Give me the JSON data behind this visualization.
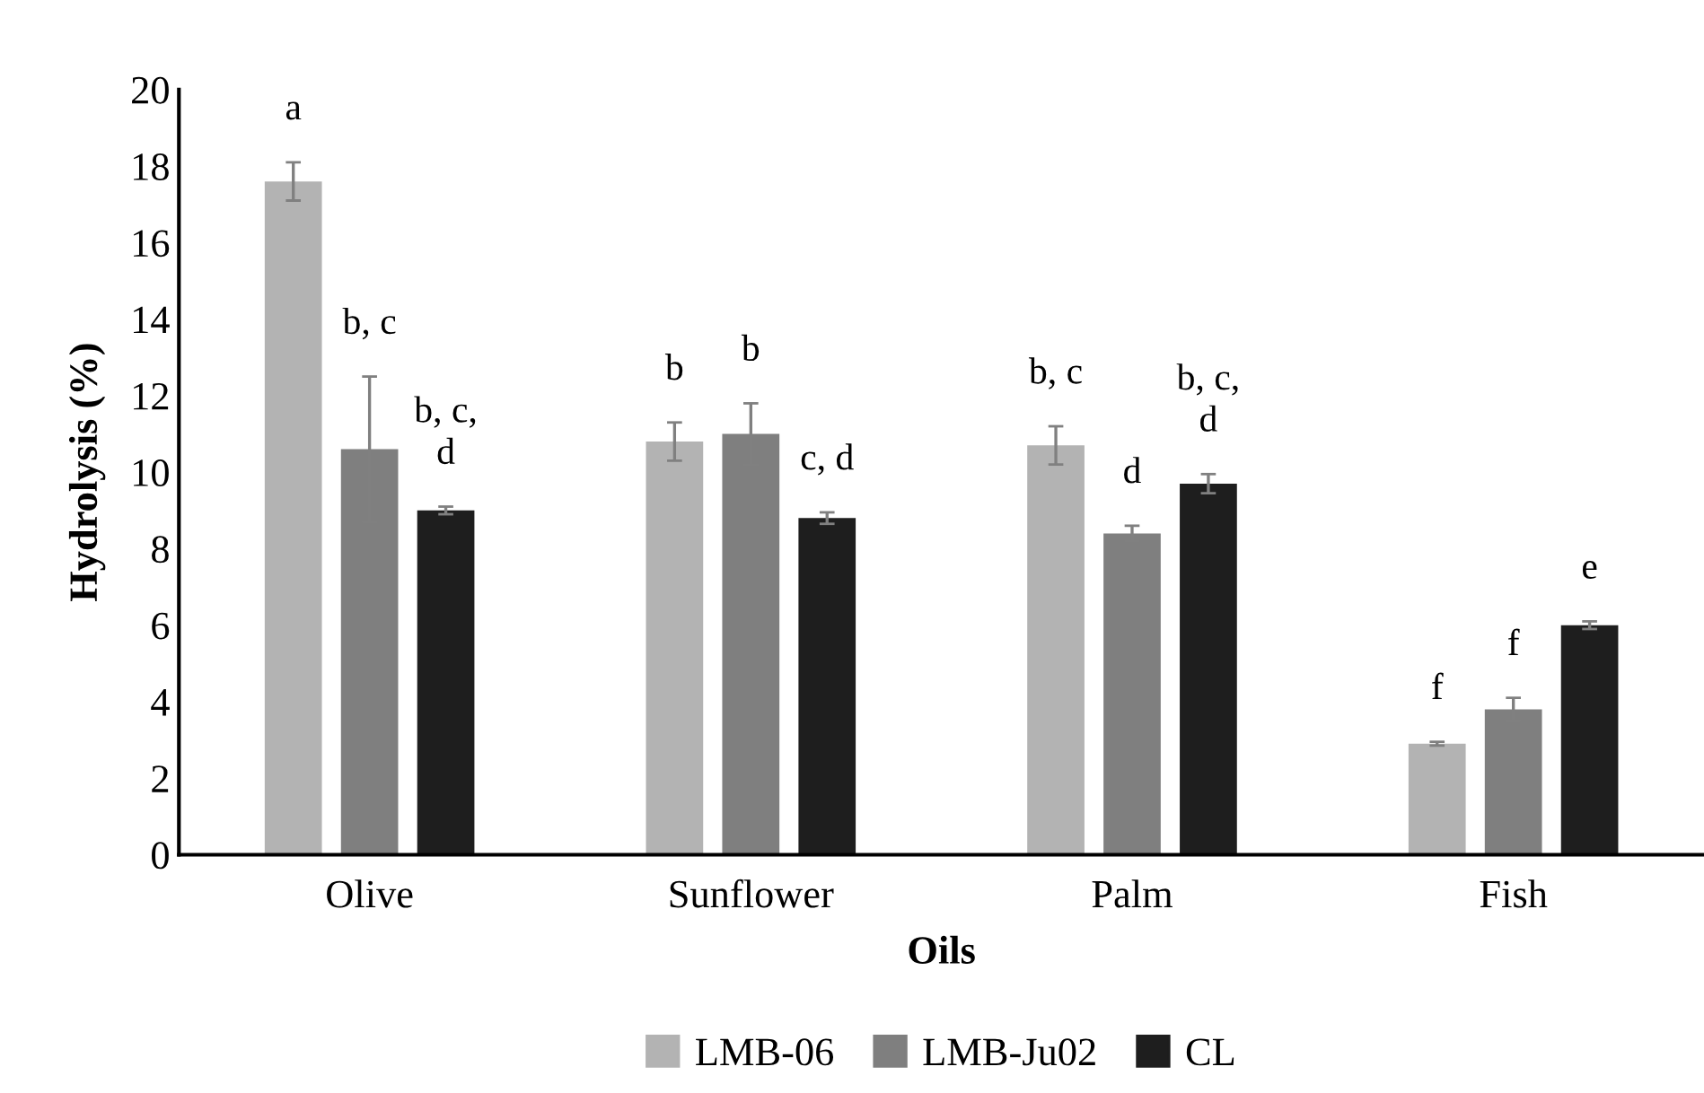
{
  "chart_data": {
    "type": "bar",
    "xlabel": "Oils",
    "ylabel": "Hydrolysis (%)",
    "categories": [
      "Olive",
      "Sunflower",
      "Palm",
      "Fish"
    ],
    "series": [
      {
        "name": "LMB-06",
        "color": "#b3b3b3",
        "values": [
          17.6,
          10.8,
          10.7,
          2.9
        ],
        "errors": [
          0.5,
          0.5,
          0.5,
          0.05
        ]
      },
      {
        "name": "LMB-Ju02",
        "color": "#7f7f7f",
        "values": [
          10.6,
          11.0,
          8.4,
          3.8
        ],
        "errors": [
          1.9,
          0.8,
          0.2,
          0.3
        ]
      },
      {
        "name": "CL",
        "color": "#1e1e1e",
        "values": [
          9.0,
          8.8,
          9.7,
          6.0
        ],
        "errors": [
          0.1,
          0.15,
          0.25,
          0.1
        ]
      }
    ],
    "ylim": [
      0,
      20
    ],
    "yticks": [
      0,
      2,
      4,
      6,
      8,
      10,
      12,
      14,
      16,
      18,
      20
    ],
    "grid": false,
    "legend": "bottom",
    "annotations": [
      "a",
      "b, c",
      "b, c,\nd",
      "b",
      "b",
      "c, d",
      "b, c",
      "d",
      "b, c,\nd",
      "f",
      "f",
      "e"
    ]
  }
}
